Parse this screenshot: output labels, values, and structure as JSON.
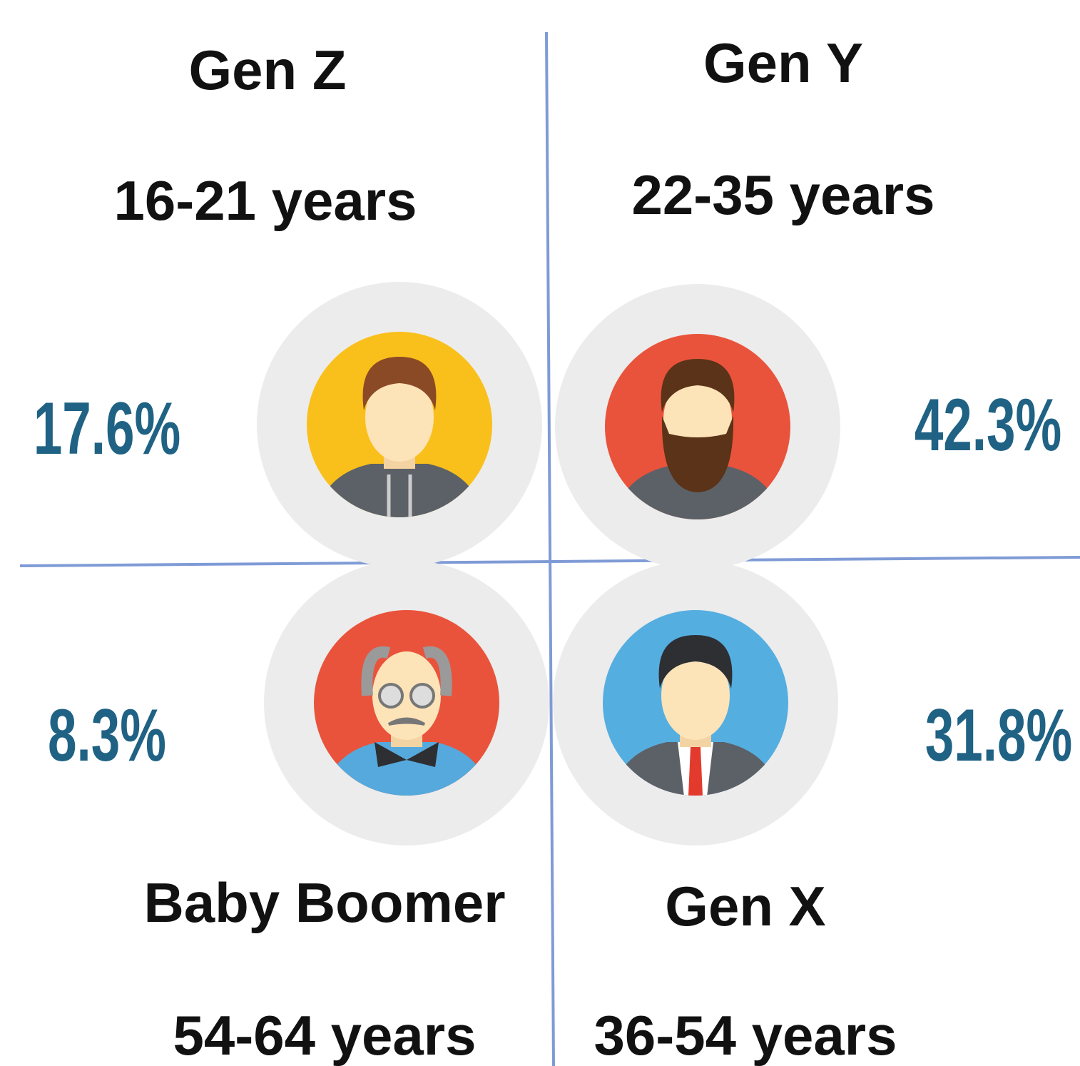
{
  "quadrants": [
    {
      "title": "Gen Z",
      "ages": "16-21 years",
      "share": "17.6%"
    },
    {
      "title": "Gen Y",
      "ages": "22-35 years",
      "share": "42.3%"
    },
    {
      "title": "Baby Boomer",
      "ages": "54-64 years",
      "share": "8.3%"
    },
    {
      "title": "Gen X",
      "ages": "36-54 years",
      "share": "31.8%"
    }
  ]
}
